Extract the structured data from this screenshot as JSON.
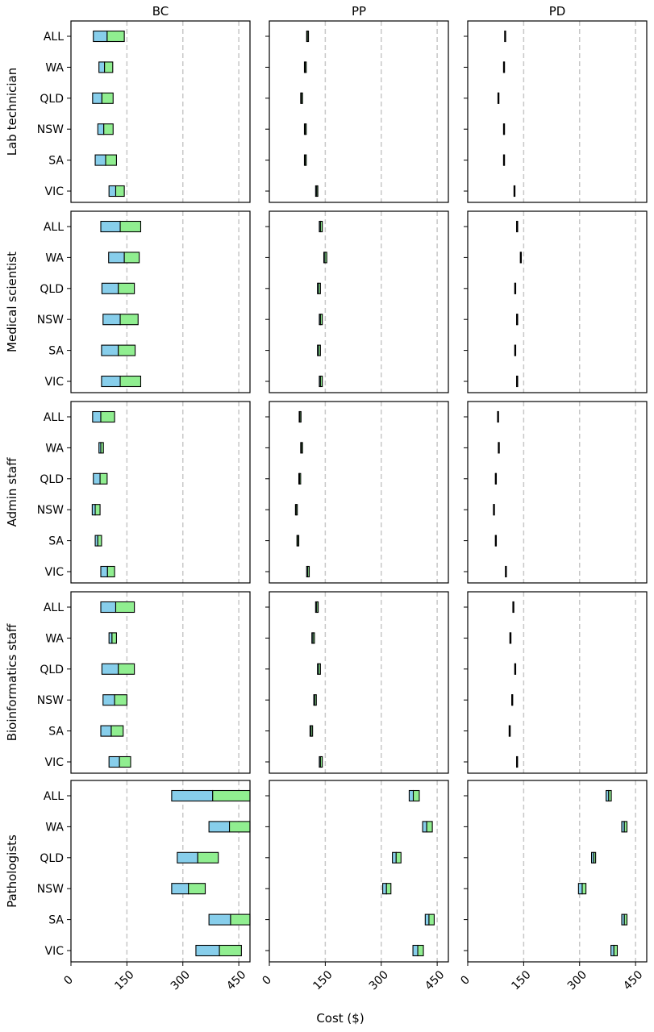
{
  "chart_data": {
    "type": "bar",
    "subtype": "horizontal floating stacked ranges (small multiples)",
    "xlabel": "Cost ($)",
    "xlim": [
      0,
      480
    ],
    "xticks": [
      0,
      150,
      300,
      450
    ],
    "reference_lines": [
      150,
      300,
      450
    ],
    "grid": false,
    "colors": {
      "segment_low": "#87CEEB",
      "segment_high": "#90EE90",
      "ref_line": "#c8c8c8",
      "outline": "#000000"
    },
    "columns": [
      "BC",
      "PP",
      "PD"
    ],
    "rows": [
      "Lab technician",
      "Medical scientist",
      "Admin staff",
      "Bioinformatics staff",
      "Pathologists"
    ],
    "categories": [
      "ALL",
      "WA",
      "QLD",
      "NSW",
      "SA",
      "VIC"
    ],
    "panels": [
      {
        "row": "Lab technician",
        "column": "BC",
        "ranges": [
          [
            60,
            97,
            143
          ],
          [
            75,
            90,
            112
          ],
          [
            58,
            83,
            113
          ],
          [
            72,
            88,
            113
          ],
          [
            65,
            93,
            122
          ],
          [
            102,
            120,
            143
          ]
        ]
      },
      {
        "row": "Lab technician",
        "column": "PP",
        "ranges": [
          [
            100,
            102,
            105
          ],
          [
            94,
            96,
            99
          ],
          [
            84,
            86,
            89
          ],
          [
            94,
            96,
            99
          ],
          [
            94,
            96,
            99
          ],
          [
            124,
            127,
            130
          ]
        ]
      },
      {
        "row": "Lab technician",
        "column": "PD",
        "ranges": [
          [
            99,
            100,
            101
          ],
          [
            96,
            97,
            98
          ],
          [
            81,
            82,
            83
          ],
          [
            96,
            97,
            98
          ],
          [
            96,
            97,
            98
          ],
          [
            124,
            125,
            126
          ]
        ]
      },
      {
        "row": "Medical scientist",
        "column": "BC",
        "ranges": [
          [
            80,
            132,
            187
          ],
          [
            101,
            143,
            183
          ],
          [
            83,
            127,
            170
          ],
          [
            86,
            132,
            180
          ],
          [
            82,
            127,
            172
          ],
          [
            82,
            132,
            187
          ]
        ]
      },
      {
        "row": "Medical scientist",
        "column": "PP",
        "ranges": [
          [
            134,
            137,
            142
          ],
          [
            146,
            149,
            154
          ],
          [
            129,
            132,
            137
          ],
          [
            134,
            137,
            142
          ],
          [
            129,
            132,
            137
          ],
          [
            134,
            137,
            142
          ]
        ]
      },
      {
        "row": "Medical scientist",
        "column": "PD",
        "ranges": [
          [
            131,
            132,
            134
          ],
          [
            141,
            142,
            143
          ],
          [
            126,
            127,
            128
          ],
          [
            131,
            132,
            134
          ],
          [
            126,
            127,
            128
          ],
          [
            131,
            132,
            134
          ]
        ]
      },
      {
        "row": "Admin staff",
        "column": "BC",
        "ranges": [
          [
            58,
            80,
            117
          ],
          [
            75,
            80,
            87
          ],
          [
            60,
            78,
            97
          ],
          [
            57,
            65,
            78
          ],
          [
            65,
            72,
            82
          ],
          [
            80,
            98,
            117
          ]
        ]
      },
      {
        "row": "Admin staff",
        "column": "PP",
        "ranges": [
          [
            80,
            82,
            85
          ],
          [
            84,
            86,
            89
          ],
          [
            79,
            81,
            84
          ],
          [
            70,
            72,
            75
          ],
          [
            74,
            76,
            79
          ],
          [
            100,
            103,
            107
          ]
        ]
      },
      {
        "row": "Admin staff",
        "column": "PD",
        "ranges": [
          [
            80,
            81,
            82
          ],
          [
            82,
            83,
            84
          ],
          [
            74,
            75,
            76
          ],
          [
            69,
            70,
            71
          ],
          [
            74,
            75,
            76
          ],
          [
            101,
            102,
            103
          ]
        ]
      },
      {
        "row": "Bioinformatics staff",
        "column": "BC",
        "ranges": [
          [
            80,
            120,
            170
          ],
          [
            102,
            110,
            122
          ],
          [
            83,
            127,
            170
          ],
          [
            86,
            117,
            150
          ],
          [
            80,
            108,
            140
          ],
          [
            102,
            130,
            160
          ]
        ]
      },
      {
        "row": "Bioinformatics staff",
        "column": "PP",
        "ranges": [
          [
            124,
            127,
            131
          ],
          [
            114,
            117,
            121
          ],
          [
            129,
            132,
            137
          ],
          [
            119,
            122,
            126
          ],
          [
            109,
            112,
            116
          ],
          [
            134,
            137,
            142
          ]
        ]
      },
      {
        "row": "Bioinformatics staff",
        "column": "PD",
        "ranges": [
          [
            121,
            122,
            123
          ],
          [
            113,
            114,
            116
          ],
          [
            126,
            127,
            128
          ],
          [
            118,
            119,
            120
          ],
          [
            111,
            112,
            114
          ],
          [
            131,
            132,
            133
          ]
        ]
      },
      {
        "row": "Pathologists",
        "column": "BC",
        "ranges": [
          [
            270,
            380,
            480
          ],
          [
            370,
            425,
            480
          ],
          [
            285,
            340,
            395
          ],
          [
            270,
            315,
            360
          ],
          [
            370,
            428,
            480
          ],
          [
            335,
            398,
            457
          ]
        ]
      },
      {
        "row": "Pathologists",
        "column": "PP",
        "ranges": [
          [
            375,
            386,
            402
          ],
          [
            411,
            422,
            437
          ],
          [
            330,
            340,
            353
          ],
          [
            304,
            314,
            326
          ],
          [
            418,
            428,
            442
          ],
          [
            385,
            398,
            413
          ]
        ]
      },
      {
        "row": "Pathologists",
        "column": "PD",
        "ranges": [
          [
            371,
            378,
            385
          ],
          [
            413,
            420,
            427
          ],
          [
            332,
            338,
            343
          ],
          [
            297,
            307,
            317
          ],
          [
            413,
            420,
            427
          ],
          [
            384,
            392,
            401
          ]
        ]
      }
    ]
  }
}
